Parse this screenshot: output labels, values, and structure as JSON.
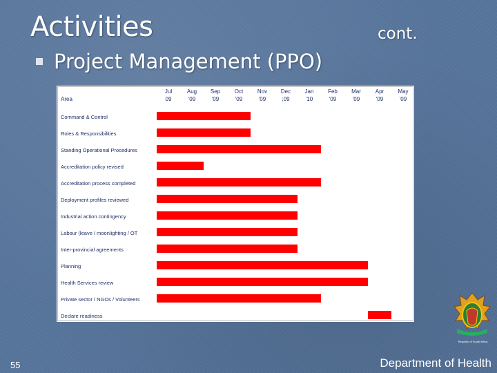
{
  "slide": {
    "title": "Activities",
    "cont": "cont.",
    "bullet": "Project Management (PPO)",
    "page_number": "55",
    "footer": "Department of Health",
    "crest_text": "Republic of South Africa"
  },
  "colors": {
    "bar": "#ff0000",
    "panel": "#ffffff",
    "background": "#56749b"
  },
  "chart_data": {
    "type": "bar",
    "orientation": "horizontal",
    "subtype": "gantt",
    "area_header": "Area",
    "months": [
      [
        "Jul",
        "09"
      ],
      [
        "Aug",
        "'09"
      ],
      [
        "Sep",
        "'09"
      ],
      [
        "Oct",
        "'09"
      ],
      [
        "Nov",
        "'09"
      ],
      [
        "Dec",
        ";09"
      ],
      [
        "Jan",
        "'10"
      ],
      [
        "Feb",
        "'09"
      ],
      [
        "Mar",
        "'09"
      ],
      [
        "Apr",
        "'09"
      ],
      [
        "May",
        "'09"
      ]
    ],
    "tasks": [
      {
        "name": "Command & Control",
        "start": 0,
        "end": 4
      },
      {
        "name": "Roles & Responsibilities",
        "start": 0,
        "end": 4
      },
      {
        "name": "Standing Operational Procedures",
        "start": 0,
        "end": 7
      },
      {
        "name": "Accreditation policy revised",
        "start": 0,
        "end": 2
      },
      {
        "name": "Accreditation process completed",
        "start": 0,
        "end": 7
      },
      {
        "name": "Deployment profiles reviewed",
        "start": 0,
        "end": 6
      },
      {
        "name": "Industrial action contingency",
        "start": 0,
        "end": 6
      },
      {
        "name": "Labour (leave / moonlighting / OT",
        "start": 0,
        "end": 6
      },
      {
        "name": "Inter-provincial agreements",
        "start": 0,
        "end": 6
      },
      {
        "name": "Planning",
        "start": 0,
        "end": 9
      },
      {
        "name": "Health Services review",
        "start": 0,
        "end": 9
      },
      {
        "name": "Private sector / NGOs / Volunteers",
        "start": 0,
        "end": 7
      },
      {
        "name": "Declare readiness",
        "start": 9,
        "end": 10
      }
    ]
  }
}
